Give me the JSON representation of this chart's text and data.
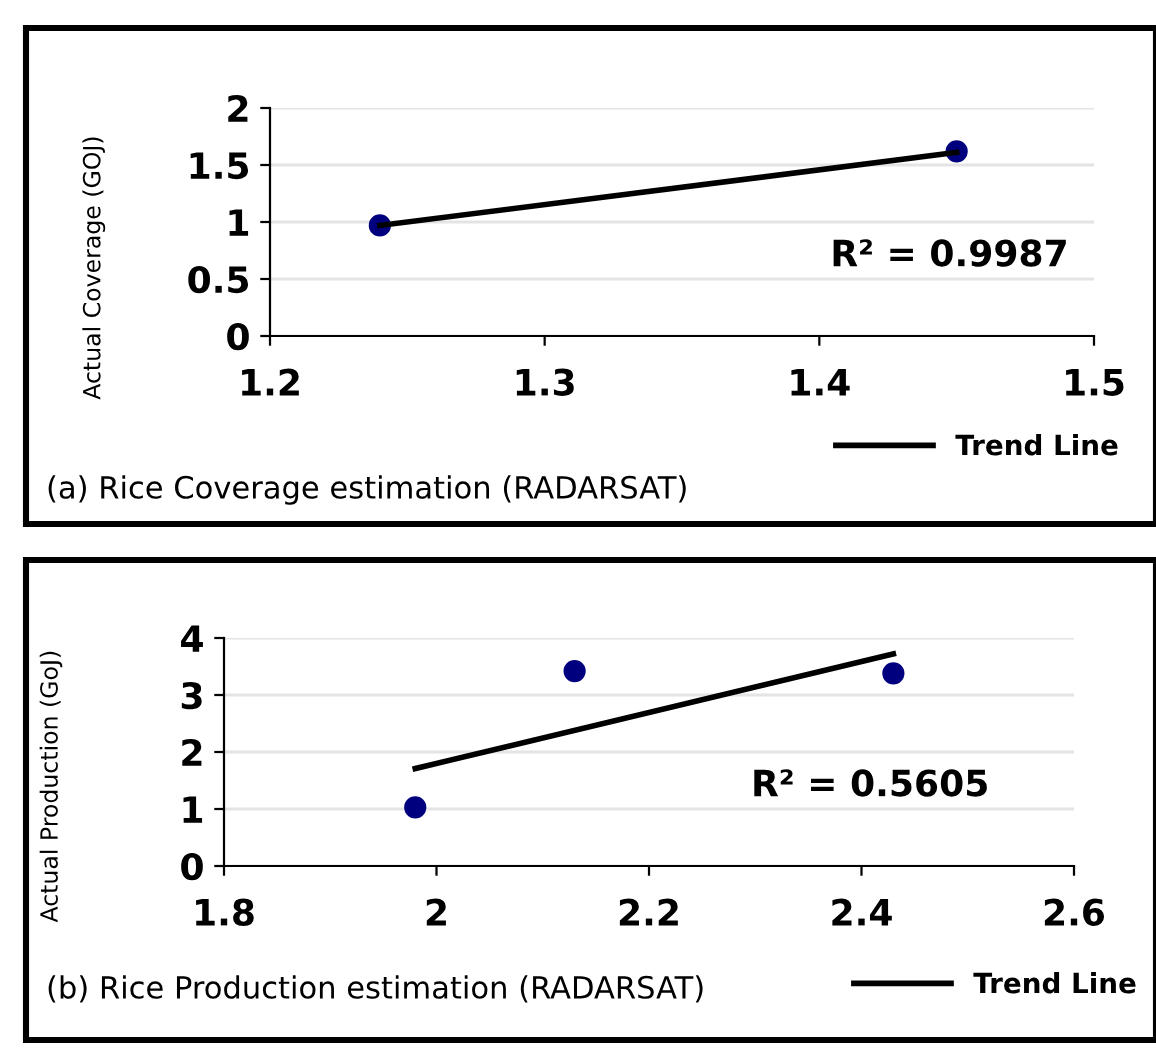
{
  "chart_data": [
    {
      "type": "scatter",
      "ylabel": "Actual Coverage (GOJ)",
      "annotations": [
        "R² = 0.9987",
        "(a) Rice Coverage estimation (RADARSAT)"
      ],
      "xlim": [
        1.2,
        1.5
      ],
      "xticks": [
        1.2,
        1.3,
        1.4,
        1.5
      ],
      "ylim": [
        0,
        2
      ],
      "yticks": [
        0,
        0.5,
        1,
        1.5,
        2
      ],
      "grid": "y",
      "legend": "bottom right",
      "marker": "circle",
      "series": [
        {
          "color": "#00007f",
          "x": [
            1.24,
            1.45
          ],
          "values": [
            0.97,
            1.62
          ]
        },
        {
          "type": "line",
          "name": "Trend Line",
          "color": "#000000",
          "marker": "none",
          "line_style": "solid",
          "x": [
            1.24,
            1.45
          ],
          "values": [
            0.97,
            1.61
          ]
        }
      ]
    },
    {
      "type": "scatter",
      "ylabel": "Actual Production (GoJ)",
      "annotations": [
        "R² = 0.5605",
        "(b) Rice Production estimation (RADARSAT)"
      ],
      "xlim": [
        1.8,
        2.6
      ],
      "xticks": [
        1.8,
        2,
        2.2,
        2.4,
        2.6
      ],
      "ylim": [
        0,
        4
      ],
      "yticks": [
        0,
        1,
        2,
        3,
        4
      ],
      "grid": "y",
      "legend": "bottom right",
      "marker": "circle",
      "series": [
        {
          "color": "#00007f",
          "x": [
            1.98,
            2.13,
            2.43
          ],
          "values": [
            1.03,
            3.42,
            3.38
          ]
        },
        {
          "type": "line",
          "name": "Trend Line",
          "color": "#000000",
          "marker": "none",
          "line_style": "solid",
          "x": [
            1.98,
            2.43
          ],
          "values": [
            1.71,
            3.72
          ]
        }
      ]
    }
  ]
}
